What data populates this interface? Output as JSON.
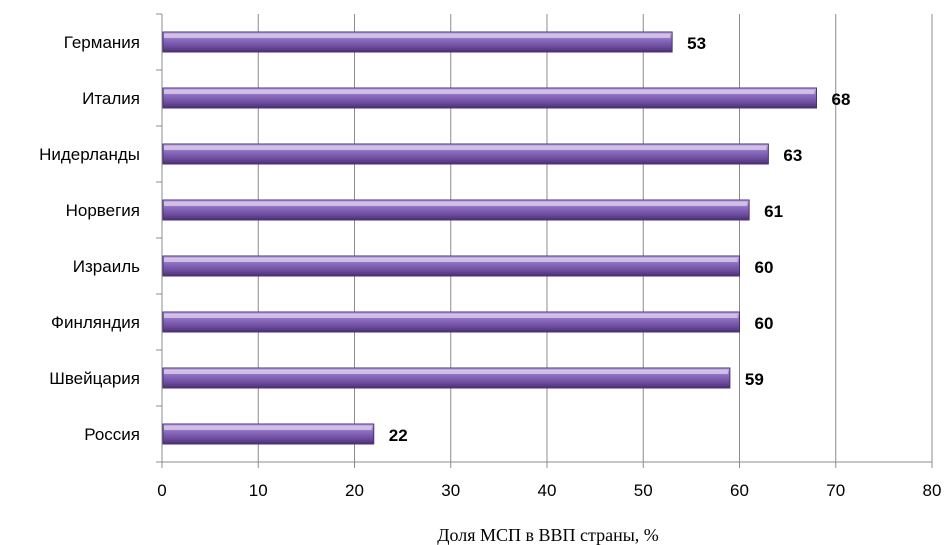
{
  "chart_data": {
    "type": "bar",
    "orientation": "horizontal",
    "categories": [
      "Германия",
      "Италия",
      "Нидерланды",
      "Норвегия",
      "Израиль",
      "Финляндия",
      "Швейцария",
      "Россия"
    ],
    "values": [
      53,
      68,
      63,
      61,
      60,
      60,
      59,
      22
    ],
    "title": "",
    "xlabel": "Доля МСП в ВВП страны, %",
    "ylabel": "",
    "xlim": [
      0,
      80
    ],
    "xticks": [
      "0",
      "10",
      "20",
      "30",
      "40",
      "50",
      "60",
      "70",
      "80"
    ],
    "grid": "vertical",
    "legend": "none",
    "bar_color": "#7b5ba8",
    "bar_edge_color": "#4a2f75",
    "bar_highlight_color": "#c7b4e2"
  }
}
